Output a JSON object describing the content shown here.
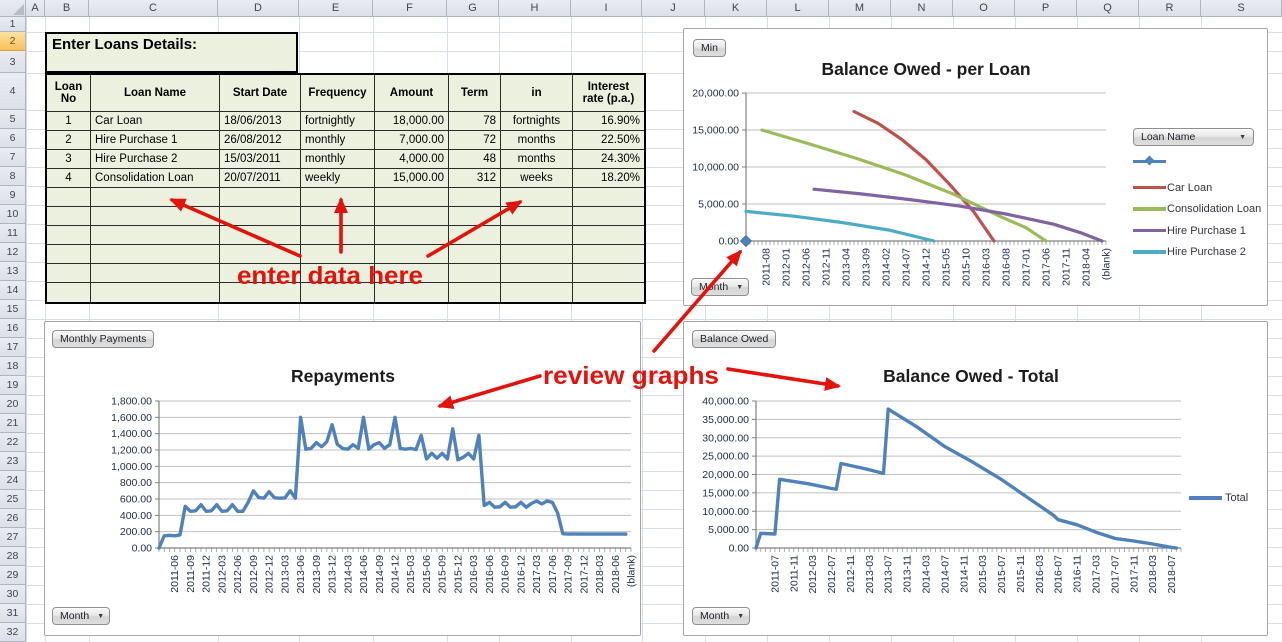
{
  "spreadsheet": {
    "column_headers": [
      "A",
      "B",
      "C",
      "D",
      "E",
      "F",
      "G",
      "H",
      "I",
      "J",
      "K",
      "L",
      "M",
      "N",
      "O",
      "P",
      "Q",
      "R",
      "S"
    ],
    "row_numbers": [
      1,
      2,
      3,
      4,
      5,
      6,
      7,
      8,
      9,
      10,
      11,
      12,
      13,
      14,
      15,
      16,
      17,
      18,
      19,
      20,
      21,
      22,
      23,
      24,
      25,
      26,
      27,
      28,
      29,
      30,
      31,
      32
    ],
    "selected_row": 2
  },
  "loans_table": {
    "title": "Enter Loans Details:",
    "headers": [
      "Loan No",
      "Loan Name",
      "Start Date",
      "Frequency",
      "Amount",
      "Term",
      "in",
      "Interest rate (p.a.)"
    ],
    "col_align": [
      "center",
      "left",
      "left",
      "left",
      "right",
      "right",
      "center",
      "right"
    ],
    "rows": [
      [
        "1",
        "Car Loan",
        "18/06/2013",
        "fortnightly",
        "18,000.00",
        "78",
        "fortnights",
        "16.90%"
      ],
      [
        "2",
        "Hire Purchase 1",
        "26/08/2012",
        "monthly",
        "7,000.00",
        "72",
        "months",
        "22.50%"
      ],
      [
        "3",
        "Hire Purchase 2",
        "15/03/2011",
        "monthly",
        "4,000.00",
        "48",
        "months",
        "24.30%"
      ],
      [
        "4",
        "Consolidation Loan",
        "20/07/2011",
        "weekly",
        "15,000.00",
        "312",
        "weeks",
        "18.20%"
      ]
    ],
    "empty_row_count": 6,
    "fill_color": "#EBF1DE"
  },
  "annotations": {
    "color": "#E3120B",
    "labels": [
      {
        "text": "enter data here"
      },
      {
        "text": "review graphs"
      }
    ]
  },
  "chart_data": [
    {
      "type": "line",
      "title": "Balance Owed - per Loan",
      "buttons": {
        "top_left": "Min",
        "bottom_left": "Month",
        "legend_top": "Loan Name"
      },
      "ylim": [
        0,
        20000
      ],
      "ytick_labels": [
        "0.00",
        "5,000.00",
        "10,000.00",
        "15,000.00",
        "20,000.00"
      ],
      "x_month_start": "2011-03",
      "x_month_count": 91,
      "xtick_labels": [
        "2011-08",
        "2012-01",
        "2012-06",
        "2012-11",
        "2013-04",
        "2013-09",
        "2014-02",
        "2014-07",
        "2014-12",
        "2015-05",
        "2015-10",
        "2016-03",
        "2016-08",
        "2017-01",
        "2017-06",
        "2017-11",
        "2018-04",
        "(blank)"
      ],
      "legend_entries": [
        "",
        "Car Loan",
        "Consolidation Loan",
        "Hire Purchase 1",
        "Hire Purchase 2"
      ],
      "series": [
        {
          "name": "",
          "color": "#4F81BD",
          "marker": "diamond",
          "points": [
            [
              "2011-03",
              0
            ]
          ]
        },
        {
          "name": "Car Loan",
          "color": "#C0504D",
          "points": [
            [
              "2013-06",
              17500
            ],
            [
              "2013-12",
              15900
            ],
            [
              "2014-06",
              13700
            ],
            [
              "2014-12",
              11000
            ],
            [
              "2015-06",
              7600
            ],
            [
              "2015-12",
              3900
            ],
            [
              "2016-05",
              0
            ]
          ]
        },
        {
          "name": "Consolidation Loan",
          "color": "#9BBB59",
          "points": [
            [
              "2011-07",
              15000
            ],
            [
              "2012-07",
              13100
            ],
            [
              "2013-07",
              11100
            ],
            [
              "2014-07",
              8900
            ],
            [
              "2015-07",
              6300
            ],
            [
              "2016-07",
              3200
            ],
            [
              "2017-01",
              1800
            ],
            [
              "2017-06",
              0
            ]
          ]
        },
        {
          "name": "Hire Purchase 1",
          "color": "#8064A2",
          "points": [
            [
              "2012-08",
              7000
            ],
            [
              "2013-08",
              6350
            ],
            [
              "2014-08",
              5600
            ],
            [
              "2015-08",
              4750
            ],
            [
              "2016-08",
              3650
            ],
            [
              "2017-08",
              2250
            ],
            [
              "2018-03",
              1050
            ],
            [
              "2018-08",
              0
            ]
          ]
        },
        {
          "name": "Hire Purchase 2",
          "color": "#4BACC6",
          "points": [
            [
              "2011-03",
              4000
            ],
            [
              "2012-03",
              3350
            ],
            [
              "2013-03",
              2500
            ],
            [
              "2014-03",
              1450
            ],
            [
              "2015-02",
              0
            ]
          ]
        }
      ]
    },
    {
      "type": "line",
      "title": "Repayments",
      "buttons": {
        "top_left": "Monthly Payments",
        "bottom_left": "Month"
      },
      "ylim": [
        0,
        1800
      ],
      "ytick_labels": [
        "0.00",
        "200.00",
        "400.00",
        "600.00",
        "800.00",
        "1,000.00",
        "1,200.00",
        "1,400.00",
        "1,600.00",
        "1,800.00"
      ],
      "x_month_start": "2011-03",
      "x_month_count": 91,
      "xtick_labels": [
        "2011-06",
        "2011-09",
        "2011-12",
        "2012-03",
        "2012-06",
        "2012-09",
        "2012-12",
        "2013-03",
        "2013-06",
        "2013-09",
        "2013-12",
        "2014-03",
        "2014-06",
        "2014-09",
        "2014-12",
        "2015-03",
        "2015-06",
        "2015-09",
        "2015-12",
        "2016-03",
        "2016-06",
        "2016-09",
        "2016-12",
        "2017-03",
        "2017-06",
        "2017-09",
        "2017-12",
        "2018-03",
        "2018-06",
        "(blank)"
      ],
      "series": [
        {
          "name": "Monthly Payments",
          "color": "#4F81BD",
          "monthly_start": "2011-03",
          "values": [
            0,
            150,
            155,
            150,
            160,
            510,
            450,
            455,
            530,
            450,
            455,
            530,
            450,
            455,
            530,
            450,
            450,
            560,
            700,
            620,
            610,
            690,
            615,
            610,
            612,
            700,
            610,
            1600,
            1210,
            1220,
            1290,
            1240,
            1300,
            1510,
            1270,
            1220,
            1210,
            1265,
            1220,
            1600,
            1210,
            1265,
            1290,
            1220,
            1265,
            1600,
            1220,
            1210,
            1220,
            1205,
            1380,
            1090,
            1160,
            1100,
            1160,
            1090,
            1460,
            1080,
            1110,
            1160,
            1090,
            1380,
            520,
            560,
            500,
            505,
            560,
            500,
            505,
            560,
            500,
            545,
            575,
            540,
            575,
            560,
            430,
            175,
            170,
            172,
            170,
            170,
            170,
            170,
            170,
            170,
            170,
            170,
            170,
            170
          ]
        }
      ]
    },
    {
      "type": "line",
      "title": "Balance Owed - Total",
      "buttons": {
        "top_left": "Balance Owed",
        "bottom_left": "Month"
      },
      "ylim": [
        0,
        40000
      ],
      "ytick_labels": [
        "0.00",
        "5,000.00",
        "10,000.00",
        "15,000.00",
        "20,000.00",
        "25,000.00",
        "30,000.00",
        "35,000.00",
        "40,000.00"
      ],
      "x_month_start": "2011-03",
      "x_month_count": 91,
      "xtick_labels": [
        "2011-07",
        "2011-11",
        "2012-03",
        "2012-07",
        "2012-11",
        "2013-03",
        "2013-07",
        "2013-11",
        "2014-03",
        "2014-07",
        "2014-11",
        "2015-03",
        "2015-07",
        "2015-11",
        "2016-03",
        "2016-07",
        "2016-11",
        "2017-03",
        "2017-07",
        "2017-11",
        "2018-03",
        "2018-07"
      ],
      "legend_entries": [
        "Total"
      ],
      "series": [
        {
          "name": "Total",
          "color": "#4F81BD",
          "points": [
            [
              "2011-03",
              0
            ],
            [
              "2011-04",
              4000
            ],
            [
              "2011-07",
              3800
            ],
            [
              "2011-08",
              18700
            ],
            [
              "2012-02",
              17500
            ],
            [
              "2012-07",
              16200
            ],
            [
              "2012-08",
              16000
            ],
            [
              "2012-09",
              23000
            ],
            [
              "2013-02",
              21600
            ],
            [
              "2013-06",
              20300
            ],
            [
              "2013-07",
              37800
            ],
            [
              "2014-01",
              33000
            ],
            [
              "2014-07",
              27600
            ],
            [
              "2015-01",
              23300
            ],
            [
              "2015-07",
              18600
            ],
            [
              "2016-01",
              13300
            ],
            [
              "2016-06",
              8900
            ],
            [
              "2016-07",
              7700
            ],
            [
              "2016-11",
              6300
            ],
            [
              "2017-03",
              4300
            ],
            [
              "2017-07",
              2600
            ],
            [
              "2017-11",
              1900
            ],
            [
              "2018-03",
              1100
            ],
            [
              "2018-07",
              150
            ],
            [
              "2018-08",
              0
            ]
          ]
        }
      ]
    }
  ]
}
